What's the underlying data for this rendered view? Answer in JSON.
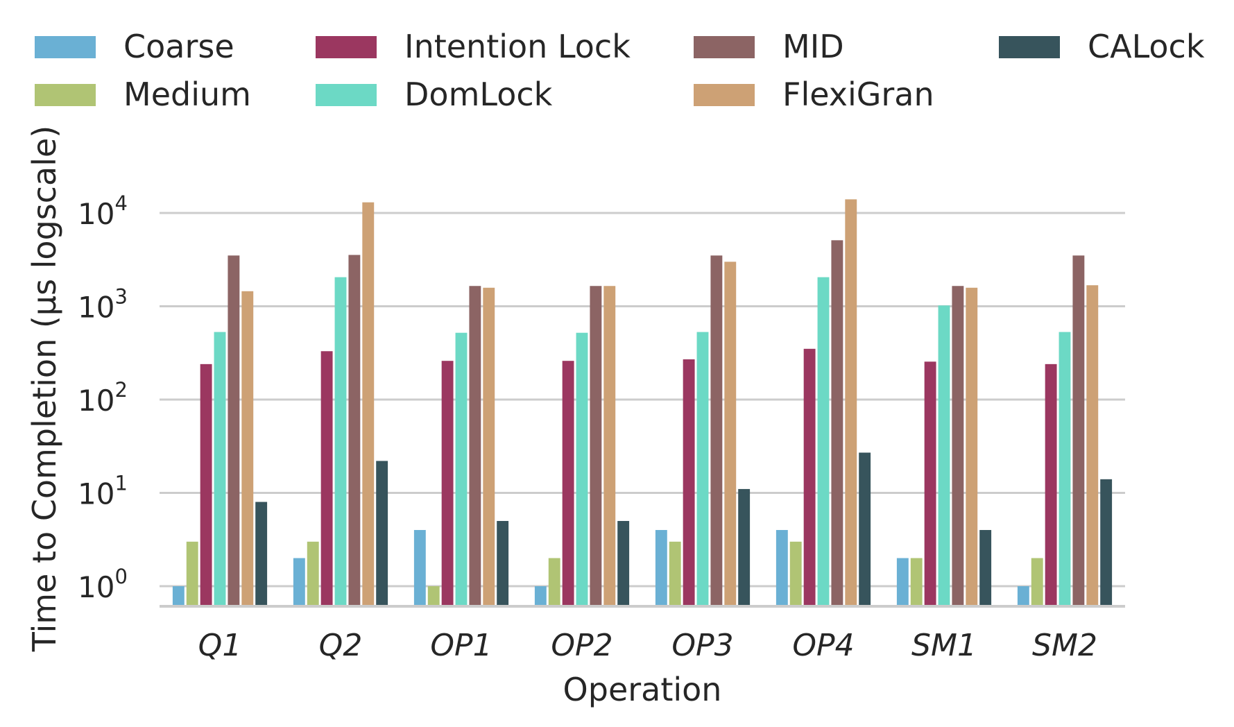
{
  "chart_data": {
    "type": "bar",
    "xlabel": "Operation",
    "ylabel": "Time to Completion (μs logscale)",
    "yscale": "log",
    "ylim": [
      0.55,
      20000
    ],
    "yticks": [
      {
        "value": 1,
        "base": "10",
        "exp": "0"
      },
      {
        "value": 10,
        "base": "10",
        "exp": "1"
      },
      {
        "value": 100,
        "base": "10",
        "exp": "2"
      },
      {
        "value": 1000,
        "base": "10",
        "exp": "3"
      },
      {
        "value": 10000,
        "base": "10",
        "exp": "4"
      }
    ],
    "grid": "horizontal",
    "legend": "top",
    "categories": [
      "Q1",
      "Q2",
      "OP1",
      "OP2",
      "OP3",
      "OP4",
      "SM1",
      "SM2"
    ],
    "series": [
      {
        "name": "Coarse",
        "color": "#6ab0d4",
        "values": [
          1,
          2,
          4,
          1,
          4,
          4,
          2,
          1
        ]
      },
      {
        "name": "Medium",
        "color": "#b0c474",
        "values": [
          3,
          3,
          1,
          2,
          3,
          3,
          2,
          2
        ]
      },
      {
        "name": "Intention Lock",
        "color": "#9b3760",
        "values": [
          240,
          330,
          260,
          260,
          270,
          350,
          255,
          240
        ]
      },
      {
        "name": "DomLock",
        "color": "#6cd9c5",
        "values": [
          530,
          2050,
          520,
          520,
          530,
          2050,
          1020,
          530
        ]
      },
      {
        "name": "MID",
        "color": "#8c6464",
        "values": [
          3500,
          3550,
          1650,
          1650,
          3500,
          5100,
          1650,
          3500
        ]
      },
      {
        "name": "FlexiGran",
        "color": "#cda175",
        "values": [
          1450,
          13000,
          1580,
          1650,
          3000,
          14000,
          1580,
          1680
        ]
      },
      {
        "name": "CALock",
        "color": "#37545c",
        "values": [
          8,
          22,
          5,
          5,
          11,
          27,
          4,
          14
        ]
      }
    ]
  }
}
